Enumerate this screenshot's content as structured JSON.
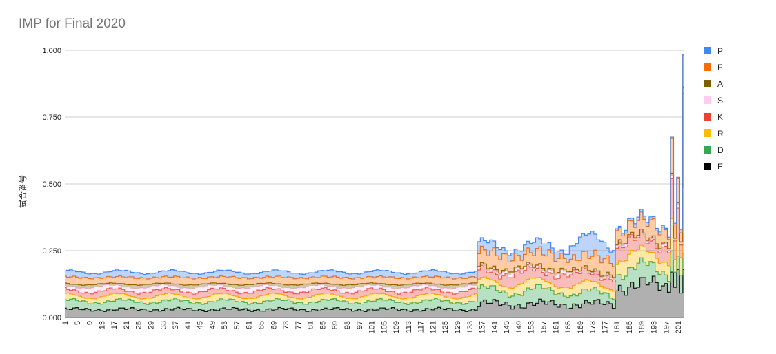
{
  "chart_data": {
    "type": "area",
    "stacked": true,
    "step": true,
    "title": "IMP for Final 2020",
    "xlabel": "",
    "ylabel": "試合番号",
    "ylim": [
      0,
      1.0
    ],
    "yticks": [
      "0.000",
      "0.250",
      "0.500",
      "0.750",
      "1.000"
    ],
    "xtick_labels": [
      "1",
      "5",
      "9",
      "13",
      "17",
      "21",
      "25",
      "29",
      "33",
      "37",
      "41",
      "45",
      "49",
      "53",
      "57",
      "61",
      "65",
      "69",
      "73",
      "77",
      "81",
      "85",
      "89",
      "93",
      "97",
      "101",
      "105",
      "109",
      "113",
      "117",
      "121",
      "125",
      "129",
      "133",
      "137",
      "141",
      "145",
      "149",
      "153",
      "157",
      "161",
      "165",
      "169",
      "173",
      "177",
      "181",
      "185",
      "189",
      "193",
      "197",
      "201"
    ],
    "x_count": 203,
    "grid": true,
    "legend_position": "right",
    "series_meta": [
      {
        "name": "P",
        "color": "#4285f4"
      },
      {
        "name": "F",
        "color": "#ff6d01"
      },
      {
        "name": "A",
        "color": "#7f6000"
      },
      {
        "name": "S",
        "color": "#ffccf0"
      },
      {
        "name": "K",
        "color": "#ea4335"
      },
      {
        "name": "R",
        "color": "#fbbc04"
      },
      {
        "name": "D",
        "color": "#34a853"
      },
      {
        "name": "E",
        "color": "#000000"
      }
    ],
    "segments": [
      {
        "x0": 1,
        "x1": 135,
        "E": [
          0.03,
          0.008
        ],
        "D": [
          0.03,
          0.01
        ],
        "R": [
          0.02,
          0.01
        ],
        "K": [
          0.02,
          0.008
        ],
        "S": [
          0.015,
          0.008
        ],
        "A": [
          0.01,
          0.006
        ],
        "F": [
          0.025,
          0.006
        ],
        "P": [
          0.02,
          0.008
        ]
      },
      {
        "x0": 136,
        "x1": 165,
        "E": [
          0.05,
          0.02
        ],
        "D": [
          0.05,
          0.02
        ],
        "R": [
          0.03,
          0.015
        ],
        "K": [
          0.04,
          0.02
        ],
        "S": [
          0.01,
          0.006
        ],
        "A": [
          0.006,
          0.004
        ],
        "F": [
          0.05,
          0.02
        ],
        "P": [
          0.03,
          0.02
        ]
      },
      {
        "x0": 166,
        "x1": 180,
        "E": [
          0.05,
          0.02
        ],
        "D": [
          0.04,
          0.02
        ],
        "R": [
          0.03,
          0.015
        ],
        "K": [
          0.04,
          0.02
        ],
        "S": [
          0.006,
          0.004
        ],
        "A": [
          0.006,
          0.004
        ],
        "F": [
          0.05,
          0.02
        ],
        "P": [
          0.06,
          0.04
        ]
      },
      {
        "x0": 181,
        "x1": 203,
        "E": [
          0.12,
          0.04
        ],
        "D": [
          0.06,
          0.03
        ],
        "R": [
          0.05,
          0.02
        ],
        "K": [
          0.05,
          0.02
        ],
        "S": [
          0.006,
          0.004
        ],
        "A": [
          0.006,
          0.004
        ],
        "F": [
          0.05,
          0.02
        ],
        "P": [
          0.01,
          0.005
        ]
      }
    ],
    "overrides": [
      {
        "x": 199,
        "E": 0.17,
        "D": 0.08,
        "R": 0.12,
        "K": 0.15,
        "S": 0.01,
        "A": 0.01,
        "F": 0.13,
        "P": 0.005
      },
      {
        "x": 201,
        "E": 0.18,
        "D": 0.05,
        "R": 0.06,
        "K": 0.12,
        "S": 0.01,
        "A": 0.01,
        "F": 0.09,
        "P": 0.005
      },
      {
        "x": 203,
        "E": 0.18,
        "D": 0.06,
        "R": 0.25,
        "K": 0.35,
        "S": 0.01,
        "A": 0.01,
        "F": 0.12,
        "P": 0.005
      }
    ]
  },
  "legend": [
    {
      "label": "P",
      "color": "#4285f4"
    },
    {
      "label": "F",
      "color": "#ff6d01"
    },
    {
      "label": "A",
      "color": "#7f6000"
    },
    {
      "label": "S",
      "color": "#ffccf0"
    },
    {
      "label": "K",
      "color": "#ea4335"
    },
    {
      "label": "R",
      "color": "#fbbc04"
    },
    {
      "label": "D",
      "color": "#34a853"
    },
    {
      "label": "E",
      "color": "#000000"
    }
  ]
}
